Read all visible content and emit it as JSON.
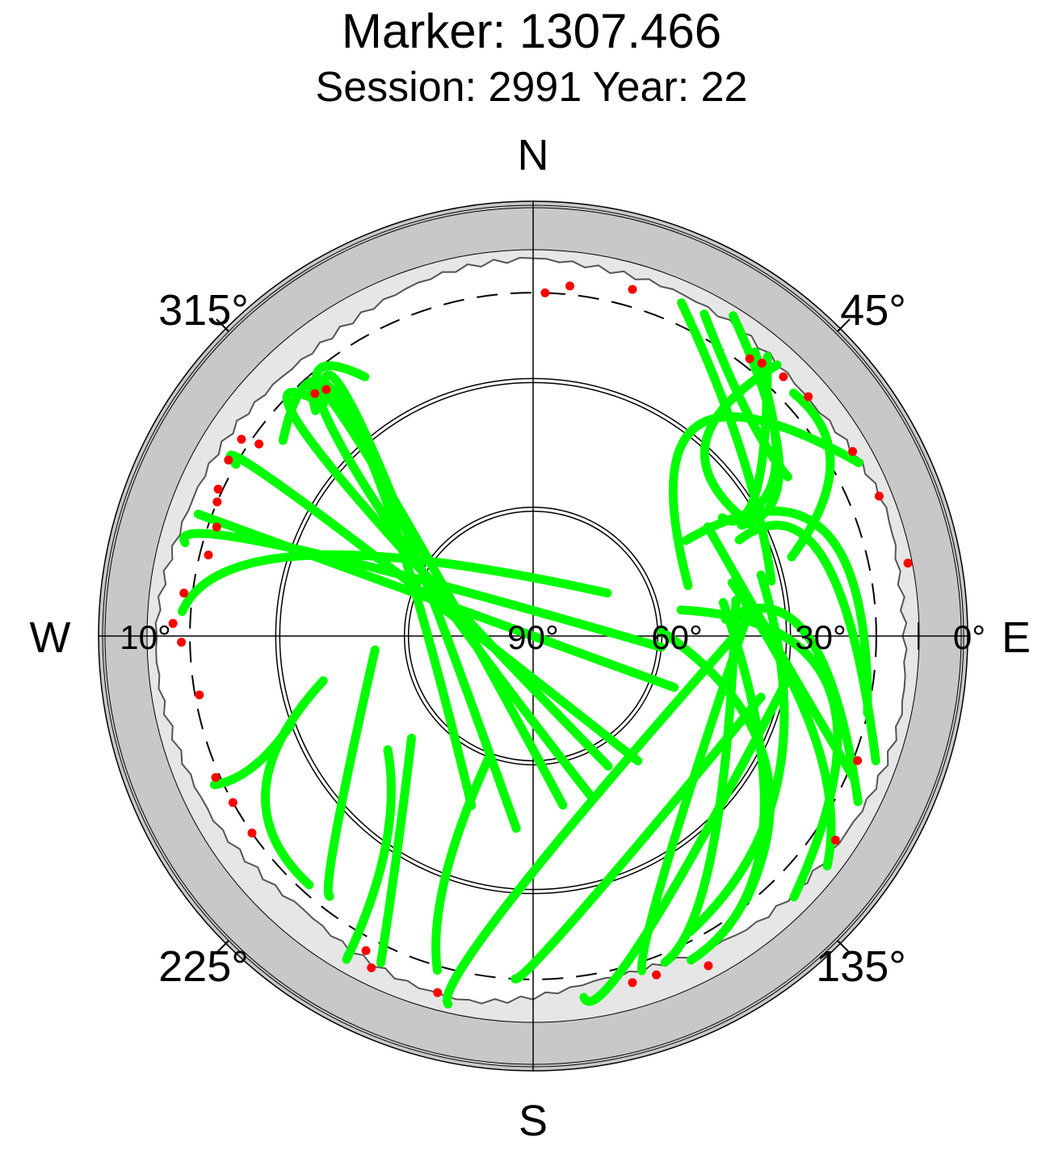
{
  "chart_data": {
    "type": "scatter",
    "subtype": "polar-skyplot",
    "title": "Marker: 1307.466",
    "subtitle": "Session: 2991 Year: 22",
    "cardinal_labels": {
      "north": "N",
      "east": "E",
      "south": "S",
      "west": "W"
    },
    "azimuth_tick_labels": [
      "45°",
      "135°",
      "225°",
      "315°"
    ],
    "elevation_tick_labels": [
      "0°",
      "10°",
      "30°",
      "60°",
      "90°"
    ],
    "elevation_range": [
      0,
      90
    ],
    "elevation_circles": [
      10,
      30,
      60
    ],
    "colors": {
      "track": "#00ff00",
      "track_end": "#ff0000",
      "outer_ring": "#c8c8c8",
      "mask_area": "#e6e6e6",
      "plot_area": "#ffffff",
      "grid": "#000000"
    },
    "series": [
      {
        "tracks": [
          [
            [
              33,
              77
            ],
            [
              25,
              48
            ],
            [
              5,
              24
            ]
          ],
          [
            [
              27,
              73
            ],
            [
              10,
              60
            ],
            [
              7,
              47
            ]
          ],
          [
            [
              38,
              58
            ],
            [
              28,
              57
            ],
            [
              5,
              40
            ]
          ],
          [
            [
              35,
              62
            ],
            [
              20,
              55
            ],
            [
              2,
              32
            ]
          ],
          [
            [
              32,
              60
            ],
            [
              20,
              54
            ],
            [
              6,
              38
            ]
          ],
          [
            [
              20,
              58
            ],
            [
              18,
              44
            ],
            [
              5,
              28
            ]
          ],
          [
            [
              33,
              63
            ],
            [
              30,
              42
            ],
            [
              5,
              42
            ]
          ],
          [
            [
              52,
              72
            ],
            [
              28,
              38
            ],
            [
              4,
              62
            ]
          ],
          [
            [
              48,
              58
            ],
            [
              18,
              70
            ],
            [
              10,
              103
            ]
          ],
          [
            [
              37,
              65
            ],
            [
              20,
              75
            ],
            [
              5,
              110
            ]
          ],
          [
            [
              55,
              80
            ],
            [
              20,
              100
            ],
            [
              4,
              135
            ]
          ],
          [
            [
              45,
              85
            ],
            [
              26,
              90
            ],
            [
              5,
              117
            ]
          ],
          [
            [
              42,
              58
            ],
            [
              30,
              97
            ],
            [
              8,
              114
            ]
          ],
          [
            [
              60,
              88
            ],
            [
              30,
              117
            ],
            [
              11,
              141
            ]
          ],
          [
            [
              42,
              75
            ],
            [
              20,
              110
            ],
            [
              3,
              128
            ]
          ],
          [
            [
              35,
              75
            ],
            [
              24,
              120
            ],
            [
              12,
              152
            ]
          ],
          [
            [
              45,
              80
            ],
            [
              20,
              130
            ],
            [
              6,
              154
            ]
          ],
          [
            [
              42,
              80
            ],
            [
              25,
              140
            ],
            [
              8,
              158
            ]
          ],
          [
            [
              40,
              85
            ],
            [
              28,
              150
            ],
            [
              8,
              162
            ]
          ],
          [
            [
              30,
              100
            ],
            [
              15,
              160
            ],
            [
              5,
              172
            ]
          ],
          [
            [
              35,
              105
            ],
            [
              25,
              170
            ],
            [
              10,
              183
            ]
          ],
          [
            [
              43,
              90
            ],
            [
              28,
              185
            ],
            [
              2,
              193
            ]
          ],
          [
            [
              60,
              200
            ],
            [
              30,
              200
            ],
            [
              9,
              196
            ]
          ],
          [
            [
              53,
              230
            ],
            [
              30,
              212
            ],
            [
              6,
              205
            ]
          ],
          [
            [
              47,
              232
            ],
            [
              30,
              215
            ],
            [
              3,
              210
            ]
          ],
          [
            [
              53,
              265
            ],
            [
              25,
              225
            ],
            [
              13,
              218
            ]
          ],
          [
            [
              40,
              258
            ],
            [
              18,
              240
            ],
            [
              12,
              222
            ]
          ],
          [
            [
              30,
              250
            ],
            [
              18,
              245
            ],
            [
              8,
              245
            ]
          ],
          [
            [
              70,
              60
            ],
            [
              35,
              290
            ],
            [
              8,
              274
            ]
          ],
          [
            [
              60,
              95
            ],
            [
              30,
              290
            ],
            [
              6,
              285
            ]
          ],
          [
            [
              55,
              110
            ],
            [
              35,
              290
            ],
            [
              7,
              290
            ]
          ],
          [
            [
              52,
              140
            ],
            [
              30,
              300
            ],
            [
              10,
              300
            ]
          ],
          [
            [
              55,
              150
            ],
            [
              28,
              310
            ],
            [
              14,
              317
            ]
          ],
          [
            [
              50,
              160
            ],
            [
              26,
              315
            ],
            [
              18,
              327
            ]
          ],
          [
            [
              50,
              170
            ],
            [
              30,
              318
            ],
            [
              17,
              316
            ]
          ],
          [
            [
              45,
              185
            ],
            [
              30,
              320
            ],
            [
              17,
              318
            ]
          ],
          [
            [
              48,
              200
            ],
            [
              25,
              320
            ],
            [
              16,
              308
            ]
          ]
        ],
        "end_points": [
          [
            10,
            2
          ],
          [
            8,
            6
          ],
          [
            6,
            16
          ],
          [
            8,
            38
          ],
          [
            7,
            40
          ],
          [
            6,
            44
          ],
          [
            5,
            49
          ],
          [
            4,
            60
          ],
          [
            3,
            68
          ],
          [
            1,
            79
          ],
          [
            9,
            111
          ],
          [
            5,
            124
          ],
          [
            3,
            152
          ],
          [
            6,
            160
          ],
          [
            6,
            164
          ],
          [
            4,
            195
          ],
          [
            4,
            206
          ],
          [
            7,
            208
          ],
          [
            10,
            235
          ],
          [
            10,
            241
          ],
          [
            9,
            246
          ],
          [
            11,
            260
          ],
          [
            8,
            269
          ],
          [
            6,
            272
          ],
          [
            8,
            277
          ],
          [
            12,
            284
          ],
          [
            12,
            289
          ],
          [
            10,
            293
          ],
          [
            9,
            295
          ],
          [
            8,
            300
          ],
          [
            8,
            304
          ],
          [
            12,
            305
          ],
          [
            14,
            318
          ],
          [
            15,
            320
          ]
        ]
      }
    ],
    "mask_horizon": [
      [
        0,
        2
      ],
      [
        10,
        2.5
      ],
      [
        20,
        3
      ],
      [
        30,
        4
      ],
      [
        40,
        4.5
      ],
      [
        50,
        5
      ],
      [
        60,
        4
      ],
      [
        70,
        3
      ],
      [
        80,
        3.5
      ],
      [
        90,
        3
      ],
      [
        100,
        2.5
      ],
      [
        110,
        3
      ],
      [
        120,
        3.5
      ],
      [
        130,
        4
      ],
      [
        140,
        5
      ],
      [
        150,
        7
      ],
      [
        160,
        8
      ],
      [
        170,
        8
      ],
      [
        180,
        6
      ],
      [
        190,
        4
      ],
      [
        200,
        4
      ],
      [
        210,
        5
      ],
      [
        220,
        7
      ],
      [
        230,
        6
      ],
      [
        240,
        4
      ],
      [
        250,
        3
      ],
      [
        260,
        2.5
      ],
      [
        270,
        2.5
      ],
      [
        280,
        3
      ],
      [
        290,
        4
      ],
      [
        300,
        5
      ],
      [
        310,
        6
      ],
      [
        320,
        6
      ],
      [
        330,
        5
      ],
      [
        340,
        4
      ],
      [
        350,
        3
      ]
    ]
  }
}
